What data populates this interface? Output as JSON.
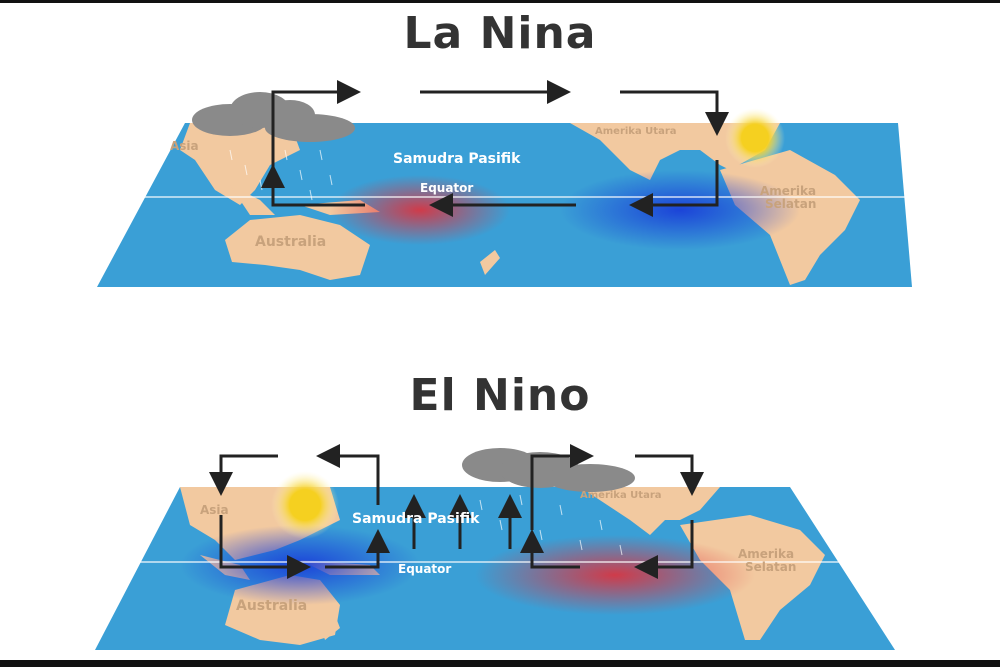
{
  "la_nina": {
    "title": "La Nina",
    "labels": {
      "asia": "Asia",
      "pacific": "Samudra Pasifik",
      "equator": "Equator",
      "north_america": "Amerika Utara",
      "south_america_1": "Amerika",
      "south_america_2": "Selatan",
      "australia": "Australia"
    }
  },
  "el_nino": {
    "title": "El Nino",
    "labels": {
      "asia": "Asia",
      "pacific": "Samudra Pasifik",
      "equator": "Equator",
      "north_america": "Amerika Utara",
      "south_america_1": "Amerika",
      "south_america_2": "Selatan",
      "australia": "Australia"
    }
  },
  "colors": {
    "ocean": "#3a9fd6",
    "land": "#f2c9a0",
    "warm": "#e0303a",
    "cool": "#1a3fd8",
    "arrow": "#222222",
    "sun": "#f5d020",
    "cloud": "#8a8a8a"
  }
}
